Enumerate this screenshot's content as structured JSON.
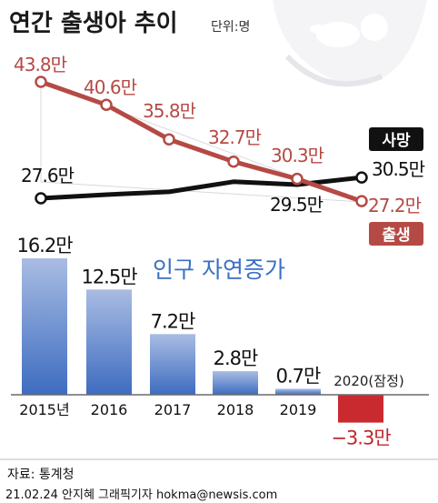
{
  "title": "연간 출생아 추이",
  "unit": "단위:명",
  "chart_data": [
    {
      "type": "line",
      "x": [
        "2015년",
        "2016",
        "2017",
        "2018",
        "2019",
        "2020(잠정)"
      ],
      "series": [
        {
          "name": "출생",
          "color": "#b54a45",
          "values": [
            438000,
            406000,
            358000,
            327000,
            303000,
            272000
          ],
          "labels": [
            "43.8만",
            "40.6만",
            "35.8만",
            "32.7만",
            "30.3만",
            "27.2만"
          ]
        },
        {
          "name": "사망",
          "color": "#111111",
          "values": [
            276000,
            281000,
            285000,
            299000,
            295000,
            305000
          ],
          "labels": [
            "27.6만",
            "",
            "",
            "",
            "29.5만",
            "30.5만"
          ]
        }
      ]
    },
    {
      "type": "bar",
      "title": "인구 자연증가",
      "categories": [
        "2015년",
        "2016",
        "2017",
        "2018",
        "2019",
        "2020(잠정)"
      ],
      "values": [
        162000,
        125000,
        72000,
        28000,
        7000,
        -33000
      ],
      "labels": [
        "16.2만",
        "12.5만",
        "7.2만",
        "2.8만",
        "0.7만",
        "−3.3만"
      ]
    }
  ],
  "source": "자료: 통계청",
  "credit": "21.02.24 안지혜 그래픽기자 hokma@newsis.com"
}
